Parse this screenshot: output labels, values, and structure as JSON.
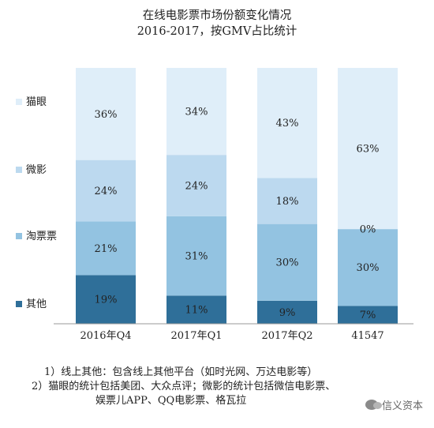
{
  "chart_data": {
    "type": "bar",
    "stacked": true,
    "title": "在线电影票市场份额变化情况",
    "subtitle": "2016-2017，按GMV占比统计",
    "categories": [
      "2016年Q4",
      "2017年Q1",
      "2017年Q2",
      "41547"
    ],
    "series": [
      {
        "name": "其他",
        "color": "#2f6f99",
        "values": [
          19,
          11,
          9,
          7
        ],
        "labels": [
          "19%",
          "11%",
          "9%",
          "7%"
        ]
      },
      {
        "name": "淘票票",
        "color": "#93c3e1",
        "values": [
          21,
          31,
          30,
          30
        ],
        "labels": [
          "21%",
          "31%",
          "30%",
          "30%"
        ]
      },
      {
        "name": "微影",
        "color": "#bcd9ef",
        "values": [
          24,
          24,
          18,
          0
        ],
        "labels": [
          "24%",
          "24%",
          "18%",
          "0%"
        ]
      },
      {
        "name": "猫眼",
        "color": "#dfeef9",
        "values": [
          36,
          34,
          43,
          63
        ],
        "labels": [
          "36%",
          "34%",
          "43%",
          "63%"
        ]
      }
    ],
    "ylim": [
      0,
      100
    ],
    "legend": "left",
    "grid": false
  },
  "notes": [
    "1）线上其他：包含线上其他平台（如时光网、万达电影等）",
    "2）猫眼的统计包括美团、大众点评；微影的统计包括微信电影票、",
    "娱票儿APP、QQ电影票、格瓦拉"
  ],
  "watermark": "信义资本"
}
